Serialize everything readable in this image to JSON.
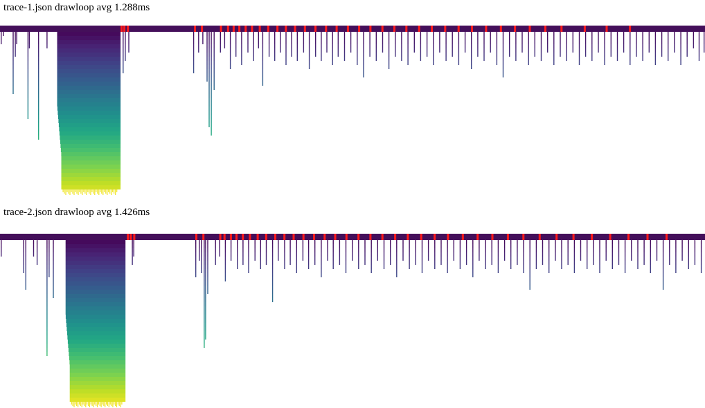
{
  "chart_data": [
    {
      "type": "flame-icicle",
      "title": "trace-1.json drawloop avg 1.288ms",
      "colors": {
        "colormap": "viridis",
        "highlight": "#ff1a1a",
        "root": "#440f5a"
      },
      "max_depth": 41,
      "big_stack": {
        "start": 0.081,
        "end": 0.171,
        "depth": 38
      },
      "stacks": [
        {
          "x": 0.001,
          "depth": 3
        },
        {
          "x": 0.004,
          "depth": 1
        },
        {
          "x": 0.018,
          "depth": 15
        },
        {
          "x": 0.021,
          "depth": 6
        },
        {
          "x": 0.023,
          "depth": 3
        },
        {
          "x": 0.039,
          "depth": 21
        },
        {
          "x": 0.041,
          "depth": 4
        },
        {
          "x": 0.054,
          "depth": 26
        },
        {
          "x": 0.066,
          "depth": 4
        },
        {
          "x": 0.174,
          "depth": 10
        },
        {
          "x": 0.177,
          "depth": 7
        },
        {
          "x": 0.182,
          "depth": 5
        },
        {
          "x": 0.274,
          "depth": 10
        },
        {
          "x": 0.281,
          "depth": 5
        },
        {
          "x": 0.287,
          "depth": 3
        },
        {
          "x": 0.293,
          "depth": 12
        },
        {
          "x": 0.296,
          "depth": 23
        },
        {
          "x": 0.299,
          "depth": 25
        },
        {
          "x": 0.303,
          "depth": 14
        },
        {
          "x": 0.312,
          "depth": 5
        },
        {
          "x": 0.318,
          "depth": 4
        },
        {
          "x": 0.326,
          "depth": 9
        },
        {
          "x": 0.334,
          "depth": 6
        },
        {
          "x": 0.342,
          "depth": 8
        },
        {
          "x": 0.351,
          "depth": 5
        },
        {
          "x": 0.359,
          "depth": 7
        },
        {
          "x": 0.366,
          "depth": 4
        },
        {
          "x": 0.372,
          "depth": 13
        },
        {
          "x": 0.381,
          "depth": 6
        },
        {
          "x": 0.389,
          "depth": 7
        },
        {
          "x": 0.397,
          "depth": 5
        },
        {
          "x": 0.405,
          "depth": 8
        },
        {
          "x": 0.413,
          "depth": 6
        },
        {
          "x": 0.421,
          "depth": 7
        },
        {
          "x": 0.43,
          "depth": 5
        },
        {
          "x": 0.438,
          "depth": 9
        },
        {
          "x": 0.447,
          "depth": 6
        },
        {
          "x": 0.455,
          "depth": 7
        },
        {
          "x": 0.463,
          "depth": 5
        },
        {
          "x": 0.471,
          "depth": 8
        },
        {
          "x": 0.479,
          "depth": 6
        },
        {
          "x": 0.488,
          "depth": 7
        },
        {
          "x": 0.497,
          "depth": 5
        },
        {
          "x": 0.506,
          "depth": 8
        },
        {
          "x": 0.515,
          "depth": 11
        },
        {
          "x": 0.524,
          "depth": 6
        },
        {
          "x": 0.533,
          "depth": 7
        },
        {
          "x": 0.542,
          "depth": 5
        },
        {
          "x": 0.551,
          "depth": 9
        },
        {
          "x": 0.56,
          "depth": 6
        },
        {
          "x": 0.569,
          "depth": 7
        },
        {
          "x": 0.578,
          "depth": 8
        },
        {
          "x": 0.587,
          "depth": 5
        },
        {
          "x": 0.596,
          "depth": 7
        },
        {
          "x": 0.605,
          "depth": 6
        },
        {
          "x": 0.614,
          "depth": 8
        },
        {
          "x": 0.623,
          "depth": 5
        },
        {
          "x": 0.632,
          "depth": 7
        },
        {
          "x": 0.641,
          "depth": 6
        },
        {
          "x": 0.65,
          "depth": 8
        },
        {
          "x": 0.659,
          "depth": 5
        },
        {
          "x": 0.668,
          "depth": 9
        },
        {
          "x": 0.677,
          "depth": 6
        },
        {
          "x": 0.686,
          "depth": 7
        },
        {
          "x": 0.695,
          "depth": 5
        },
        {
          "x": 0.704,
          "depth": 8
        },
        {
          "x": 0.713,
          "depth": 11
        },
        {
          "x": 0.722,
          "depth": 6
        },
        {
          "x": 0.731,
          "depth": 7
        },
        {
          "x": 0.74,
          "depth": 5
        },
        {
          "x": 0.749,
          "depth": 8
        },
        {
          "x": 0.758,
          "depth": 6
        },
        {
          "x": 0.767,
          "depth": 7
        },
        {
          "x": 0.776,
          "depth": 5
        },
        {
          "x": 0.785,
          "depth": 8
        },
        {
          "x": 0.794,
          "depth": 6
        },
        {
          "x": 0.803,
          "depth": 7
        },
        {
          "x": 0.812,
          "depth": 5
        },
        {
          "x": 0.821,
          "depth": 8
        },
        {
          "x": 0.83,
          "depth": 6
        },
        {
          "x": 0.839,
          "depth": 7
        },
        {
          "x": 0.848,
          "depth": 5
        },
        {
          "x": 0.857,
          "depth": 8
        },
        {
          "x": 0.866,
          "depth": 6
        },
        {
          "x": 0.875,
          "depth": 7
        },
        {
          "x": 0.884,
          "depth": 5
        },
        {
          "x": 0.893,
          "depth": 8
        },
        {
          "x": 0.902,
          "depth": 6
        },
        {
          "x": 0.911,
          "depth": 7
        },
        {
          "x": 0.92,
          "depth": 5
        },
        {
          "x": 0.929,
          "depth": 8
        },
        {
          "x": 0.938,
          "depth": 6
        },
        {
          "x": 0.947,
          "depth": 7
        },
        {
          "x": 0.956,
          "depth": 5
        },
        {
          "x": 0.965,
          "depth": 8
        },
        {
          "x": 0.974,
          "depth": 6
        },
        {
          "x": 0.983,
          "depth": 4
        },
        {
          "x": 0.991,
          "depth": 7
        },
        {
          "x": 0.998,
          "depth": 5
        }
      ],
      "red_marks": [
        0.171,
        0.175,
        0.18,
        0.275,
        0.285,
        0.312,
        0.322,
        0.33,
        0.338,
        0.347,
        0.356,
        0.367,
        0.379,
        0.392,
        0.404,
        0.417,
        0.431,
        0.446,
        0.461,
        0.476,
        0.492,
        0.508,
        0.524,
        0.541,
        0.558,
        0.575,
        0.593,
        0.611,
        0.63,
        0.649,
        0.668,
        0.688,
        0.709,
        0.729,
        0.75,
        0.772,
        0.795,
        0.828,
        0.859,
        0.892
      ]
    },
    {
      "type": "flame-icicle",
      "title": "trace-2.json drawloop avg 1.426ms",
      "colors": {
        "colormap": "viridis",
        "highlight": "#ff1a1a",
        "root": "#440f5a"
      },
      "max_depth": 41,
      "big_stack": {
        "start": 0.093,
        "end": 0.178,
        "depth": 39
      },
      "stacks": [
        {
          "x": 0.001,
          "depth": 4
        },
        {
          "x": 0.033,
          "depth": 8
        },
        {
          "x": 0.036,
          "depth": 12
        },
        {
          "x": 0.047,
          "depth": 4
        },
        {
          "x": 0.052,
          "depth": 6
        },
        {
          "x": 0.066,
          "depth": 28
        },
        {
          "x": 0.069,
          "depth": 9
        },
        {
          "x": 0.075,
          "depth": 14
        },
        {
          "x": 0.187,
          "depth": 6
        },
        {
          "x": 0.189,
          "depth": 4
        },
        {
          "x": 0.277,
          "depth": 9
        },
        {
          "x": 0.282,
          "depth": 5
        },
        {
          "x": 0.285,
          "depth": 8
        },
        {
          "x": 0.289,
          "depth": 26
        },
        {
          "x": 0.291,
          "depth": 24
        },
        {
          "x": 0.294,
          "depth": 13
        },
        {
          "x": 0.305,
          "depth": 6
        },
        {
          "x": 0.311,
          "depth": 4
        },
        {
          "x": 0.319,
          "depth": 10
        },
        {
          "x": 0.327,
          "depth": 5
        },
        {
          "x": 0.336,
          "depth": 7
        },
        {
          "x": 0.344,
          "depth": 6
        },
        {
          "x": 0.352,
          "depth": 8
        },
        {
          "x": 0.361,
          "depth": 5
        },
        {
          "x": 0.369,
          "depth": 7
        },
        {
          "x": 0.377,
          "depth": 6
        },
        {
          "x": 0.386,
          "depth": 15
        },
        {
          "x": 0.394,
          "depth": 5
        },
        {
          "x": 0.403,
          "depth": 7
        },
        {
          "x": 0.411,
          "depth": 6
        },
        {
          "x": 0.42,
          "depth": 8
        },
        {
          "x": 0.429,
          "depth": 5
        },
        {
          "x": 0.437,
          "depth": 7
        },
        {
          "x": 0.446,
          "depth": 6
        },
        {
          "x": 0.455,
          "depth": 9
        },
        {
          "x": 0.464,
          "depth": 5
        },
        {
          "x": 0.472,
          "depth": 7
        },
        {
          "x": 0.481,
          "depth": 6
        },
        {
          "x": 0.49,
          "depth": 8
        },
        {
          "x": 0.499,
          "depth": 5
        },
        {
          "x": 0.508,
          "depth": 7
        },
        {
          "x": 0.517,
          "depth": 6
        },
        {
          "x": 0.526,
          "depth": 8
        },
        {
          "x": 0.535,
          "depth": 5
        },
        {
          "x": 0.544,
          "depth": 7
        },
        {
          "x": 0.553,
          "depth": 6
        },
        {
          "x": 0.562,
          "depth": 9
        },
        {
          "x": 0.571,
          "depth": 5
        },
        {
          "x": 0.58,
          "depth": 7
        },
        {
          "x": 0.589,
          "depth": 6
        },
        {
          "x": 0.598,
          "depth": 8
        },
        {
          "x": 0.607,
          "depth": 5
        },
        {
          "x": 0.616,
          "depth": 7
        },
        {
          "x": 0.625,
          "depth": 6
        },
        {
          "x": 0.634,
          "depth": 8
        },
        {
          "x": 0.643,
          "depth": 5
        },
        {
          "x": 0.652,
          "depth": 7
        },
        {
          "x": 0.661,
          "depth": 6
        },
        {
          "x": 0.67,
          "depth": 9
        },
        {
          "x": 0.679,
          "depth": 5
        },
        {
          "x": 0.688,
          "depth": 7
        },
        {
          "x": 0.697,
          "depth": 6
        },
        {
          "x": 0.706,
          "depth": 8
        },
        {
          "x": 0.715,
          "depth": 5
        },
        {
          "x": 0.724,
          "depth": 7
        },
        {
          "x": 0.733,
          "depth": 6
        },
        {
          "x": 0.742,
          "depth": 8
        },
        {
          "x": 0.751,
          "depth": 12
        },
        {
          "x": 0.76,
          "depth": 7
        },
        {
          "x": 0.769,
          "depth": 6
        },
        {
          "x": 0.778,
          "depth": 8
        },
        {
          "x": 0.787,
          "depth": 5
        },
        {
          "x": 0.796,
          "depth": 7
        },
        {
          "x": 0.805,
          "depth": 6
        },
        {
          "x": 0.814,
          "depth": 8
        },
        {
          "x": 0.823,
          "depth": 5
        },
        {
          "x": 0.832,
          "depth": 7
        },
        {
          "x": 0.841,
          "depth": 6
        },
        {
          "x": 0.85,
          "depth": 8
        },
        {
          "x": 0.859,
          "depth": 5
        },
        {
          "x": 0.868,
          "depth": 7
        },
        {
          "x": 0.877,
          "depth": 6
        },
        {
          "x": 0.886,
          "depth": 8
        },
        {
          "x": 0.895,
          "depth": 5
        },
        {
          "x": 0.904,
          "depth": 7
        },
        {
          "x": 0.913,
          "depth": 6
        },
        {
          "x": 0.922,
          "depth": 8
        },
        {
          "x": 0.931,
          "depth": 5
        },
        {
          "x": 0.94,
          "depth": 12
        },
        {
          "x": 0.949,
          "depth": 6
        },
        {
          "x": 0.958,
          "depth": 8
        },
        {
          "x": 0.967,
          "depth": 5
        },
        {
          "x": 0.976,
          "depth": 7
        },
        {
          "x": 0.985,
          "depth": 6
        },
        {
          "x": 0.994,
          "depth": 8
        }
      ],
      "red_marks": [
        0.18,
        0.184,
        0.189,
        0.277,
        0.287,
        0.311,
        0.317,
        0.326,
        0.334,
        0.343,
        0.353,
        0.364,
        0.376,
        0.389,
        0.402,
        0.415,
        0.429,
        0.444,
        0.459,
        0.474,
        0.49,
        0.507,
        0.524,
        0.541,
        0.559,
        0.577,
        0.596,
        0.615,
        0.634,
        0.655,
        0.676,
        0.697,
        0.719,
        0.741,
        0.764,
        0.788,
        0.812,
        0.838,
        0.864,
        0.89,
        0.917,
        0.944
      ]
    }
  ]
}
